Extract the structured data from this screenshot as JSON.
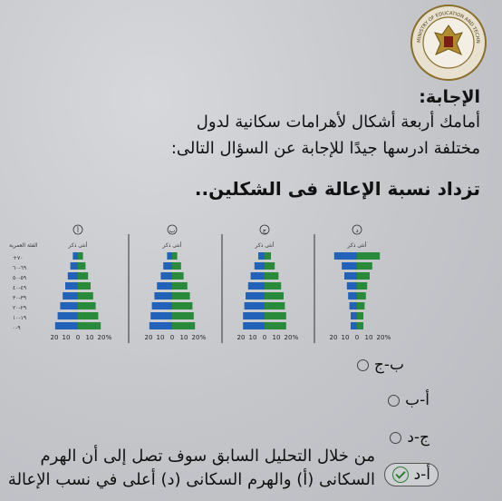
{
  "logo": {
    "text": "MINISTRY OF EDUCATION AND TECHNICAL"
  },
  "answer_label": "الإجابة:",
  "intro_line1": "أمامك أربعة أشكال لأهرامات سكانية لدول",
  "intro_line2": "مختلفة ادرسها جيدًا للإجابة عن السؤال التالى:",
  "question": "تزداد نسبة الإعالة فى الشكلين..",
  "age_header": "الفئة العمرية",
  "age_groups": [
    "+٧٠",
    "٦٩-٦٠",
    "٥٩-٥٠",
    "٤٩-٤٠",
    "٣٩-٣٠",
    "٢٩-٢٠",
    "١٩-١٠",
    "٩-٠"
  ],
  "sex_legend": "أنثى ذكر",
  "axis_ticks": [
    "20",
    "10",
    "0",
    "10",
    "20",
    "%"
  ],
  "colors": {
    "male": "#2a8a3c",
    "female": "#2262b8"
  },
  "pyramids": [
    {
      "label": "أ",
      "male": [
        4,
        6,
        8,
        10,
        12,
        14,
        16,
        18
      ],
      "female": [
        4,
        6,
        8,
        10,
        12,
        14,
        16,
        18
      ]
    },
    {
      "label": "ب",
      "male": [
        4,
        7,
        9,
        12,
        14,
        16,
        17,
        18
      ],
      "female": [
        4,
        7,
        9,
        12,
        14,
        16,
        17,
        18
      ]
    },
    {
      "label": "ج",
      "male": [
        5,
        8,
        11,
        13,
        15,
        16,
        17,
        17
      ],
      "female": [
        5,
        8,
        11,
        13,
        15,
        16,
        17,
        17
      ]
    },
    {
      "label": "د",
      "male": [
        18,
        12,
        10,
        8,
        7,
        6,
        5,
        5
      ],
      "female": [
        18,
        12,
        10,
        8,
        7,
        6,
        5,
        5
      ]
    }
  ],
  "options": [
    {
      "label": "ب-ج",
      "selected": false
    },
    {
      "label": "أ-ب",
      "selected": false
    },
    {
      "label": "ج-د",
      "selected": false
    },
    {
      "label": "أ-د",
      "selected": true
    }
  ],
  "explanation_line1": "من خلال التحليل السابق سوف  تصل إلى  أن الهرم",
  "explanation_line2": "السكانى (أ) والهرم السكانى (د) أعلى في نسب الإعالة"
}
